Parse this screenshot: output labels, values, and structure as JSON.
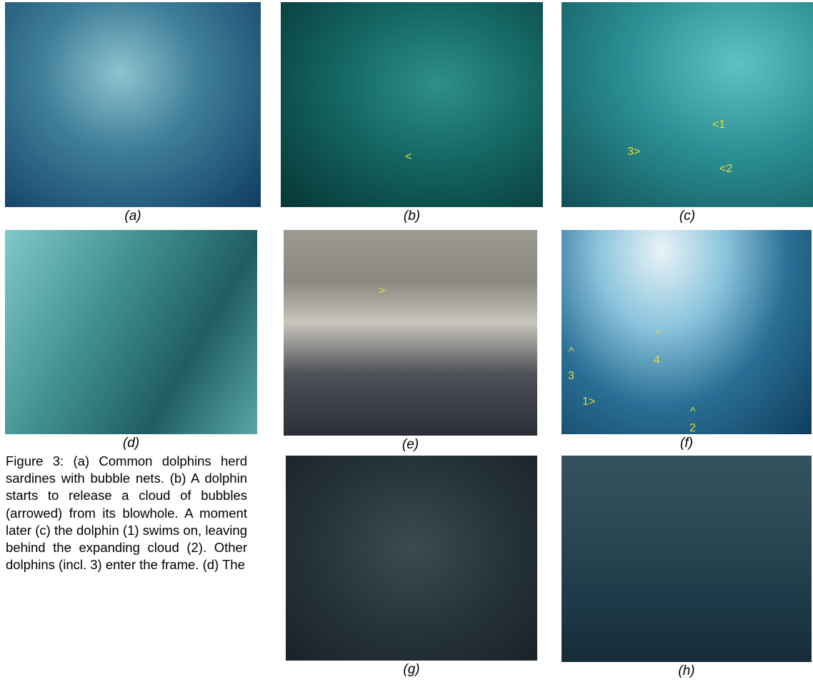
{
  "figure": {
    "panels": [
      {
        "label": "(a)",
        "annotations": []
      },
      {
        "label": "(b)",
        "annotations": [
          "<"
        ]
      },
      {
        "label": "(c)",
        "annotations": [
          "<1",
          "3>",
          "<2"
        ]
      },
      {
        "label": "(d)",
        "annotations": []
      },
      {
        "label": "(e)",
        "annotations": [
          ">"
        ]
      },
      {
        "label": "(f)",
        "annotations": [
          "^",
          "3",
          "1>",
          "^",
          "4",
          "^",
          "2"
        ]
      },
      {
        "label": "(g)",
        "annotations": []
      },
      {
        "label": "(h)",
        "annotations": []
      }
    ],
    "caption": "Figure 3: (a) Common dolphins herd sardines with bubble nets. (b) A dolphin starts to release a cloud of bubbles (arrowed) from its blowhole. A moment later (c) the dolphin (1) swims on, leaving behind the expanding cloud (2). Other dolphins (incl. 3) enter the frame. (d) The"
  }
}
